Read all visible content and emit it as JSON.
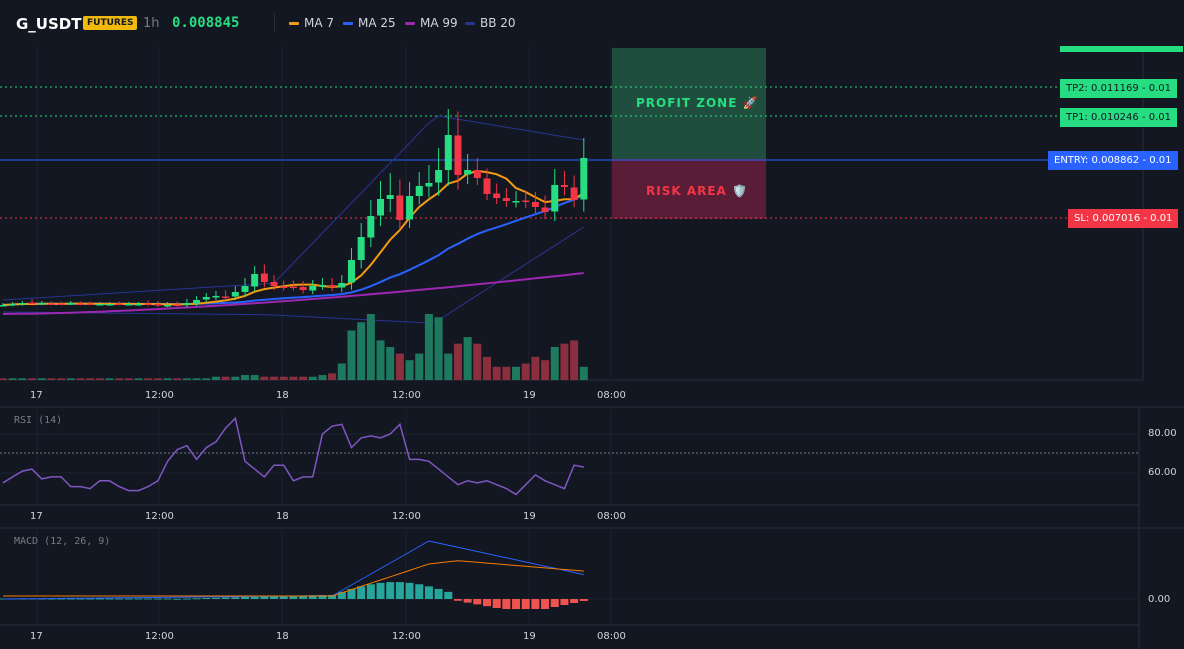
{
  "header": {
    "symbol": "G_USDT",
    "badge": "FUTURES",
    "timeframe": "1h",
    "price": "0.008845",
    "legend": [
      {
        "label": "MA 7",
        "color": "#f39c12"
      },
      {
        "label": "MA 25",
        "color": "#2962ff"
      },
      {
        "label": "MA 99",
        "color": "#9c27b0"
      },
      {
        "label": "BB 20",
        "color": "#283593"
      }
    ]
  },
  "zones": {
    "profit_label": "PROFIT ZONE 🚀",
    "risk_label": "RISK AREA 🛡️",
    "profit_color": "#1f4d3e",
    "risk_color": "#5a1d38"
  },
  "levels": {
    "tp2": "TP2: 0.011169 - 0.01",
    "tp1": "TP1: 0.010246 - 0.01",
    "entry": "ENTRY: 0.008862 - 0.01",
    "sl": "SL: 0.007016 - 0.01",
    "tp_color": "#26de81",
    "entry_color": "#2962ff",
    "sl_color": "#f23645"
  },
  "time_ticks": [
    "17",
    "12:00",
    "18",
    "12:00",
    "19",
    "08:00"
  ],
  "rsi": {
    "label": "RSI (14)",
    "y_ticks": [
      "80.00",
      "60.00"
    ],
    "values": [
      55,
      58,
      61,
      62,
      57,
      58,
      58,
      53,
      53,
      52,
      56,
      56,
      53,
      51,
      51,
      53,
      56,
      66,
      72,
      74,
      67,
      73,
      76,
      83,
      88,
      66,
      62,
      58,
      64,
      64,
      56,
      58,
      58,
      80,
      84,
      85,
      73,
      78,
      79,
      78,
      80,
      85,
      67,
      67,
      66,
      62,
      58,
      54,
      56,
      55,
      56,
      54,
      52,
      49,
      54,
      59,
      56,
      54,
      52,
      64,
      63
    ],
    "line_color": "#7e57c2"
  },
  "macd": {
    "label": "MACD (12, 26, 9)",
    "y_ticks": [
      "0.00"
    ],
    "line_color": "#2962ff",
    "signal_color": "#f57c00"
  },
  "colors": {
    "up": "#26de81",
    "down": "#f23645",
    "vol_up": "#1e7a5f",
    "vol_down": "#8b2f3f",
    "hist_up": "#26a69a",
    "hist_down": "#ef5350"
  }
}
